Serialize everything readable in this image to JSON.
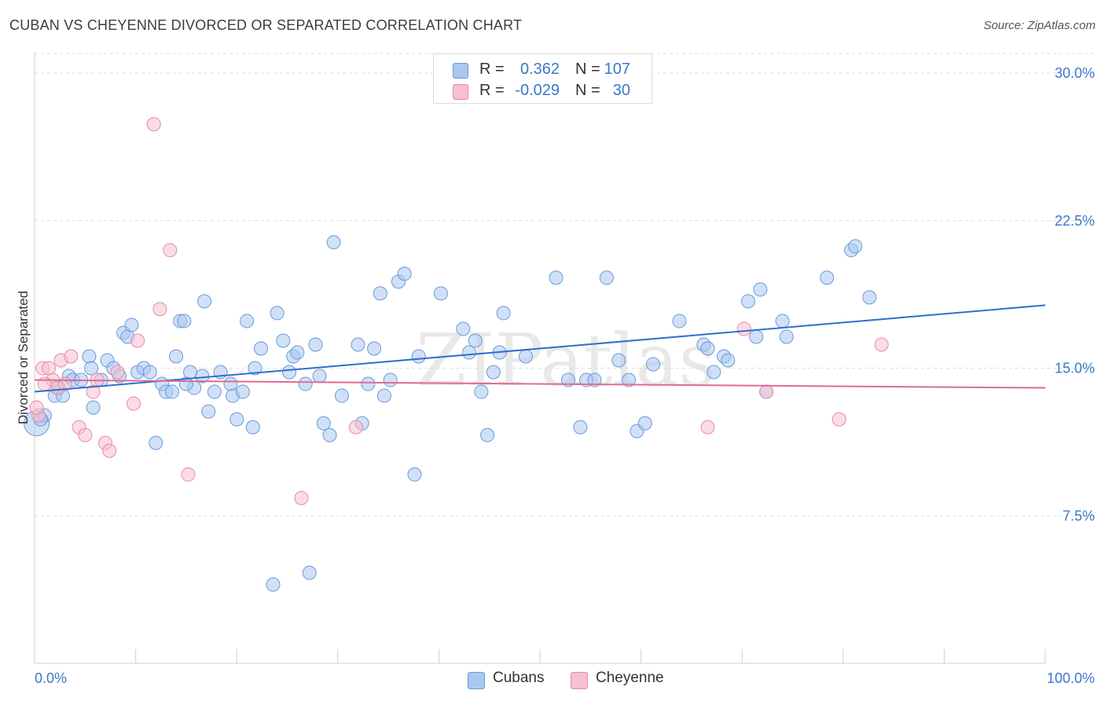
{
  "title": "CUBAN VS CHEYENNE DIVORCED OR SEPARATED CORRELATION CHART",
  "source": "Source: ZipAtlas.com",
  "watermark": "ZIPatlas",
  "legend_top": {
    "rows": [
      {
        "r_label": "R =",
        "r_value": "0.362",
        "n_label": "N =",
        "n_value": "107",
        "color": "#a9c8f0",
        "border": "#6a9ad8"
      },
      {
        "r_label": "R =",
        "r_value": "-0.029",
        "n_label": "N =",
        "n_value": "30",
        "color": "#f7bfcf",
        "border": "#e88aa5"
      }
    ]
  },
  "legend_bottom": {
    "items": [
      {
        "label": "Cubans",
        "color": "#a9c8f0",
        "border": "#6a9ad8"
      },
      {
        "label": "Cheyenne",
        "color": "#f7bfcf",
        "border": "#e88aa5"
      }
    ]
  },
  "chart_data": {
    "type": "scatter",
    "title": "CUBAN VS CHEYENNE DIVORCED OR SEPARATED CORRELATION CHART",
    "xlabel": "",
    "ylabel": "Divorced or Separated",
    "xlim": [
      0,
      100
    ],
    "ylim": [
      0,
      31
    ],
    "x_tick_labels": [
      "0.0%",
      "100.0%"
    ],
    "y_ticks": [
      7.5,
      15.0,
      22.5,
      30.0
    ],
    "y_tick_labels": [
      "7.5%",
      "15.0%",
      "22.5%",
      "30.0%"
    ],
    "grid": true,
    "series": [
      {
        "name": "Cubans",
        "color": "#6a9ad8",
        "fill": "#a9c8f0",
        "trend": {
          "x": [
            0,
            100
          ],
          "y": [
            13.8,
            18.2
          ]
        },
        "points": [
          [
            0.2,
            12.2
          ],
          [
            1.0,
            12.6
          ],
          [
            2.0,
            13.6
          ],
          [
            2.4,
            14.0
          ],
          [
            2.8,
            13.6
          ],
          [
            3.4,
            14.6
          ],
          [
            3.8,
            14.4
          ],
          [
            4.6,
            14.4
          ],
          [
            5.4,
            15.6
          ],
          [
            5.6,
            15.0
          ],
          [
            5.8,
            13.0
          ],
          [
            6.6,
            14.4
          ],
          [
            7.2,
            15.4
          ],
          [
            7.8,
            15.0
          ],
          [
            8.4,
            14.6
          ],
          [
            8.8,
            16.8
          ],
          [
            9.2,
            16.6
          ],
          [
            9.6,
            17.2
          ],
          [
            10.2,
            14.8
          ],
          [
            10.8,
            15.0
          ],
          [
            11.4,
            14.8
          ],
          [
            12.0,
            11.2
          ],
          [
            12.6,
            14.2
          ],
          [
            13.0,
            13.8
          ],
          [
            13.6,
            13.8
          ],
          [
            14.0,
            15.6
          ],
          [
            14.4,
            17.4
          ],
          [
            14.8,
            17.4
          ],
          [
            15.4,
            14.8
          ],
          [
            15.8,
            14.0
          ],
          [
            16.6,
            14.6
          ],
          [
            16.8,
            18.4
          ],
          [
            17.2,
            12.8
          ],
          [
            17.8,
            13.8
          ],
          [
            18.4,
            14.8
          ],
          [
            19.4,
            14.2
          ],
          [
            19.6,
            13.6
          ],
          [
            20.0,
            12.4
          ],
          [
            20.6,
            13.8
          ],
          [
            21.0,
            17.4
          ],
          [
            21.6,
            12.0
          ],
          [
            21.8,
            15.0
          ],
          [
            22.4,
            16.0
          ],
          [
            23.6,
            4.0
          ],
          [
            24.0,
            17.8
          ],
          [
            24.6,
            16.4
          ],
          [
            25.2,
            14.8
          ],
          [
            25.6,
            15.6
          ],
          [
            26.0,
            15.8
          ],
          [
            26.8,
            14.2
          ],
          [
            27.2,
            4.6
          ],
          [
            27.8,
            16.2
          ],
          [
            28.2,
            14.6
          ],
          [
            28.6,
            12.2
          ],
          [
            29.2,
            11.6
          ],
          [
            29.6,
            21.4
          ],
          [
            30.4,
            13.6
          ],
          [
            32.0,
            16.2
          ],
          [
            32.4,
            12.2
          ],
          [
            33.0,
            14.2
          ],
          [
            33.6,
            16.0
          ],
          [
            34.2,
            18.8
          ],
          [
            34.6,
            13.6
          ],
          [
            35.2,
            14.4
          ],
          [
            36.0,
            19.4
          ],
          [
            36.6,
            19.8
          ],
          [
            37.6,
            9.6
          ],
          [
            38.0,
            15.6
          ],
          [
            40.2,
            18.8
          ],
          [
            42.4,
            17.0
          ],
          [
            43.0,
            15.8
          ],
          [
            43.6,
            16.4
          ],
          [
            44.2,
            13.8
          ],
          [
            44.8,
            11.6
          ],
          [
            45.4,
            14.8
          ],
          [
            46.0,
            15.8
          ],
          [
            46.4,
            17.8
          ],
          [
            48.6,
            15.6
          ],
          [
            51.6,
            19.6
          ],
          [
            52.8,
            14.4
          ],
          [
            54.0,
            12.0
          ],
          [
            54.6,
            14.4
          ],
          [
            55.4,
            14.4
          ],
          [
            56.6,
            19.6
          ],
          [
            57.8,
            15.4
          ],
          [
            58.8,
            14.4
          ],
          [
            59.6,
            11.8
          ],
          [
            60.4,
            12.2
          ],
          [
            61.2,
            15.2
          ],
          [
            63.8,
            17.4
          ],
          [
            66.2,
            16.2
          ],
          [
            66.6,
            16.0
          ],
          [
            67.2,
            14.8
          ],
          [
            68.2,
            15.6
          ],
          [
            68.6,
            15.4
          ],
          [
            70.6,
            18.4
          ],
          [
            71.4,
            16.6
          ],
          [
            71.8,
            19.0
          ],
          [
            72.4,
            13.8
          ],
          [
            74.0,
            17.4
          ],
          [
            74.4,
            16.6
          ],
          [
            78.4,
            19.6
          ],
          [
            80.8,
            21.0
          ],
          [
            81.2,
            21.2
          ],
          [
            82.6,
            18.6
          ],
          [
            0.6,
            12.4
          ],
          [
            15.0,
            14.2
          ]
        ]
      },
      {
        "name": "Cheyenne",
        "color": "#e88aa5",
        "fill": "#f7bfcf",
        "trend": {
          "x": [
            0,
            100
          ],
          "y": [
            14.4,
            14.0
          ]
        },
        "points": [
          [
            0.4,
            12.6
          ],
          [
            0.8,
            15.0
          ],
          [
            1.4,
            15.0
          ],
          [
            1.8,
            14.4
          ],
          [
            2.2,
            14.0
          ],
          [
            2.6,
            15.4
          ],
          [
            3.0,
            14.2
          ],
          [
            3.6,
            15.6
          ],
          [
            4.4,
            12.0
          ],
          [
            5.0,
            11.6
          ],
          [
            5.8,
            13.8
          ],
          [
            6.2,
            14.4
          ],
          [
            7.0,
            11.2
          ],
          [
            7.4,
            10.8
          ],
          [
            8.2,
            14.8
          ],
          [
            9.8,
            13.2
          ],
          [
            10.2,
            16.4
          ],
          [
            11.8,
            27.4
          ],
          [
            12.4,
            18.0
          ],
          [
            13.4,
            21.0
          ],
          [
            15.2,
            9.6
          ],
          [
            26.4,
            8.4
          ],
          [
            31.8,
            12.0
          ],
          [
            66.6,
            12.0
          ],
          [
            70.2,
            17.0
          ],
          [
            72.4,
            13.8
          ],
          [
            79.6,
            12.4
          ],
          [
            83.8,
            16.2
          ],
          [
            0.2,
            13.0
          ],
          [
            1.0,
            14.2
          ]
        ]
      }
    ]
  }
}
